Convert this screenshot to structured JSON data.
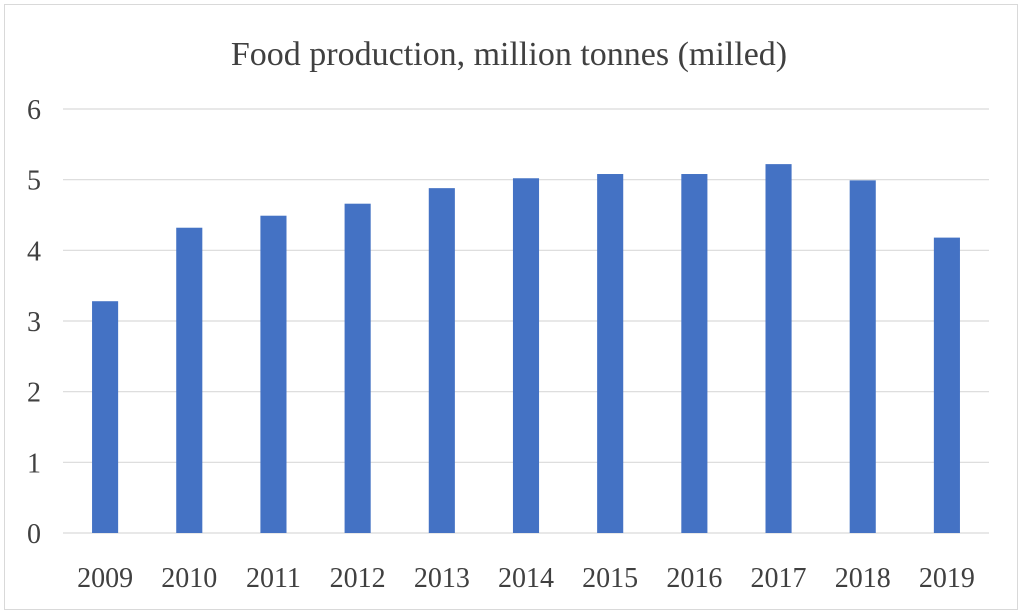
{
  "chart_data": {
    "type": "bar",
    "title": "Food production, million tonnes (milled)",
    "xlabel": "",
    "ylabel": "",
    "categories": [
      "2009",
      "2010",
      "2011",
      "2012",
      "2013",
      "2014",
      "2015",
      "2016",
      "2017",
      "2018",
      "2019"
    ],
    "series": [
      {
        "values": [
          3.28,
          4.32,
          4.49,
          4.66,
          4.88,
          5.02,
          5.08,
          5.08,
          5.22,
          4.99,
          4.18
        ]
      }
    ],
    "ylim": [
      0,
      6
    ],
    "yticks": [
      "0",
      "1",
      "2",
      "3",
      "4",
      "5",
      "6"
    ],
    "grid": true,
    "legend": "none",
    "bar_color": "#4472c4",
    "grid_color": "#d9d9d9"
  }
}
